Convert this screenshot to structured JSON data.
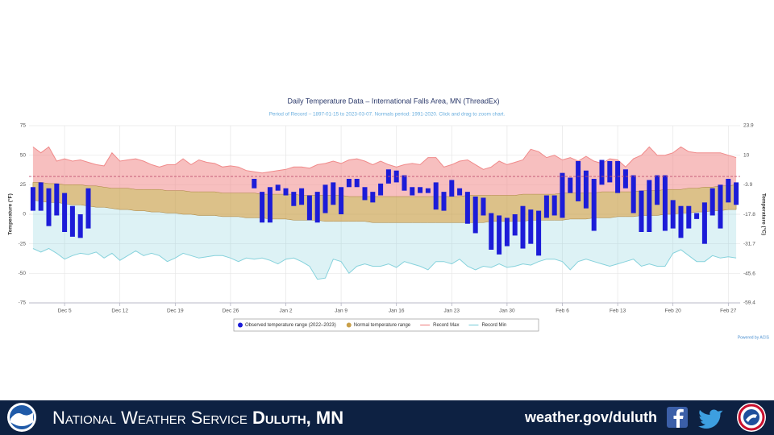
{
  "chart_data": {
    "type": "combo",
    "title": "Daily Temperature Data – International Falls Area, MN (ThreadEx)",
    "subtitle": "Period of Record – 1897-01-15 to 2023-03-07. Normals period: 1991-2020. Click and drag to zoom chart.",
    "y_label": "Temperature (°F)",
    "y2_label": "Temperature (°C)",
    "credit": "Powered by ACIS",
    "categories": [
      null,
      null,
      null,
      null,
      "Dec 5",
      null,
      null,
      null,
      null,
      null,
      null,
      "Dec 12",
      null,
      null,
      null,
      null,
      null,
      null,
      "Dec 19",
      null,
      null,
      null,
      null,
      null,
      null,
      "Dec 26",
      null,
      null,
      null,
      null,
      null,
      null,
      "Jan 2",
      null,
      null,
      null,
      null,
      null,
      null,
      "Jan 9",
      null,
      null,
      null,
      null,
      null,
      null,
      "Jan 16",
      null,
      null,
      null,
      null,
      null,
      null,
      "Jan 23",
      null,
      null,
      null,
      null,
      null,
      null,
      "Jan 30",
      null,
      null,
      null,
      null,
      null,
      null,
      "Feb 6",
      null,
      null,
      null,
      null,
      null,
      null,
      "Feb 13",
      null,
      null,
      null,
      null,
      null,
      null,
      "Feb 20",
      null,
      null,
      null,
      null,
      null,
      null,
      "Feb 27",
      null
    ],
    "ylim": [
      -75,
      75
    ],
    "yticks": [
      75,
      50,
      25,
      0,
      -25,
      -50,
      -75
    ],
    "y2lim": [
      -59.4,
      23.9
    ],
    "y2ticks": [
      23.9,
      10,
      -3.9,
      -17.8,
      -31.7,
      -45.6,
      -59.4
    ],
    "grid": true,
    "plot_line": 32,
    "series": [
      {
        "name": "Observed temperature range (2022–2023)",
        "type": "columnrange",
        "color": "#1c1cd8",
        "high": [
          23,
          27,
          22,
          26,
          18,
          7,
          0,
          22,
          null,
          null,
          null,
          null,
          null,
          null,
          null,
          null,
          null,
          null,
          null,
          null,
          null,
          null,
          null,
          null,
          null,
          null,
          null,
          null,
          30,
          19,
          23,
          25,
          22,
          19,
          22,
          16,
          19,
          25,
          27,
          23,
          30,
          30,
          23,
          19,
          26,
          38,
          37,
          33,
          23,
          23,
          22,
          27,
          19,
          29,
          22,
          19,
          15,
          14,
          1,
          -1,
          -3,
          0,
          7,
          4,
          3,
          16,
          16,
          35,
          31,
          45,
          37,
          30,
          46,
          45,
          45,
          38,
          33,
          20,
          29,
          33,
          33,
          12,
          7,
          7,
          1,
          10,
          22,
          25,
          30,
          27
        ],
        "low": [
          3,
          3,
          -10,
          -1,
          -15,
          -19,
          -20,
          -12,
          null,
          null,
          null,
          null,
          null,
          null,
          null,
          null,
          null,
          null,
          null,
          null,
          null,
          null,
          null,
          null,
          null,
          null,
          null,
          null,
          22,
          -7,
          -7,
          20,
          16,
          7,
          8,
          -5,
          -7,
          1,
          8,
          0,
          23,
          23,
          12,
          10,
          16,
          26,
          27,
          20,
          16,
          18,
          18,
          4,
          3,
          15,
          16,
          -8,
          -16,
          -1,
          -30,
          -34,
          -27,
          -18,
          -29,
          -25,
          -35,
          -3,
          -1,
          -3,
          18,
          11,
          5,
          -14,
          25,
          27,
          18,
          22,
          1,
          -15,
          -15,
          8,
          -14,
          -12,
          -20,
          -12,
          -4,
          -25,
          -1,
          -12,
          10,
          8
        ]
      },
      {
        "name": "Normal temperature range",
        "type": "arearange",
        "color": "#c9a04a",
        "high": [
          27,
          27,
          26,
          26,
          25,
          25,
          25,
          24,
          24,
          23,
          22,
          22,
          22,
          21,
          21,
          21,
          21,
          20,
          20,
          20,
          19,
          19,
          19,
          19,
          18,
          18,
          18,
          18,
          18,
          17,
          17,
          17,
          17,
          17,
          16,
          16,
          16,
          16,
          16,
          16,
          15,
          15,
          15,
          15,
          15,
          15,
          15,
          15,
          15,
          15,
          15,
          15,
          15,
          15,
          15,
          16,
          16,
          16,
          16,
          16,
          16,
          16,
          17,
          17,
          17,
          17,
          17,
          18,
          18,
          18,
          18,
          18,
          19,
          19,
          19,
          19,
          19,
          20,
          20,
          20,
          21,
          21,
          21,
          22,
          22,
          23,
          23,
          24,
          24,
          25
        ],
        "low": [
          12,
          11,
          10,
          10,
          9,
          8,
          8,
          7,
          6,
          6,
          5,
          4,
          4,
          3,
          3,
          2,
          2,
          1,
          1,
          0,
          0,
          -1,
          -1,
          -1,
          -2,
          -2,
          -2,
          -3,
          -3,
          -3,
          -4,
          -4,
          -4,
          -5,
          -5,
          -5,
          -5,
          -6,
          -6,
          -6,
          -6,
          -6,
          -6,
          -7,
          -7,
          -7,
          -7,
          -7,
          -7,
          -7,
          -7,
          -7,
          -7,
          -7,
          -7,
          -7,
          -7,
          -7,
          -6,
          -6,
          -6,
          -6,
          -6,
          -5,
          -5,
          -5,
          -5,
          -5,
          -4,
          -4,
          -4,
          -3,
          -3,
          -3,
          -2,
          -2,
          -2,
          -1,
          -1,
          -1,
          0,
          0,
          1,
          1,
          2,
          2,
          3,
          3,
          4,
          4
        ]
      },
      {
        "name": "Record Max",
        "type": "area",
        "color": "#f08a8a",
        "values": [
          57,
          52,
          57,
          45,
          47,
          45,
          46,
          44,
          42,
          41,
          52,
          45,
          46,
          47,
          45,
          42,
          40,
          42,
          42,
          47,
          42,
          46,
          44,
          43,
          40,
          41,
          40,
          37,
          36,
          35,
          36,
          37,
          38,
          40,
          40,
          39,
          42,
          43,
          45,
          43,
          46,
          47,
          45,
          42,
          45,
          42,
          40,
          42,
          43,
          42,
          48,
          48,
          40,
          42,
          45,
          46,
          42,
          38,
          40,
          45,
          42,
          44,
          46,
          55,
          53,
          48,
          50,
          46,
          48,
          45,
          49,
          45,
          43,
          47,
          46,
          40,
          47,
          50,
          57,
          50,
          50,
          52,
          57,
          53,
          52,
          52,
          52,
          52,
          50,
          48
        ]
      },
      {
        "name": "Record Min",
        "type": "area",
        "color": "#86d2dc",
        "values": [
          -29,
          -32,
          -29,
          -33,
          -38,
          -35,
          -33,
          -34,
          -32,
          -37,
          -33,
          -39,
          -35,
          -31,
          -35,
          -33,
          -35,
          -40,
          -37,
          -33,
          -35,
          -37,
          -36,
          -35,
          -35,
          -37,
          -40,
          -37,
          -38,
          -37,
          -39,
          -42,
          -38,
          -37,
          -40,
          -44,
          -55,
          -54,
          -38,
          -40,
          -50,
          -44,
          -42,
          -44,
          -44,
          -42,
          -45,
          -40,
          -42,
          -44,
          -47,
          -40,
          -40,
          -42,
          -38,
          -44,
          -47,
          -44,
          -45,
          -42,
          -45,
          -44,
          -42,
          -43,
          -40,
          -38,
          -38,
          -40,
          -47,
          -40,
          -38,
          -40,
          -42,
          -44,
          -42,
          -40,
          -38,
          -44,
          -42,
          -44,
          -44,
          -33,
          -30,
          -35,
          -40,
          -40,
          -35,
          -37,
          -36,
          -37
        ]
      }
    ]
  },
  "footer": {
    "agency": "National Weather Service",
    "office": "Duluth, MN",
    "url": "weather.gov/duluth"
  }
}
